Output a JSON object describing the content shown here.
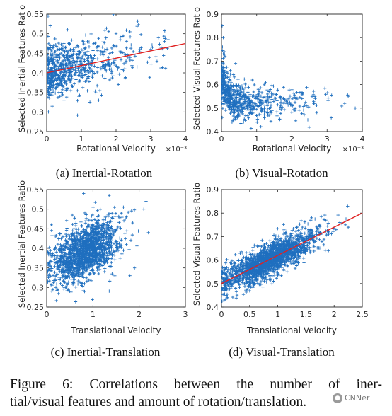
{
  "caption": {
    "line1": "Figure 6:    Correlations between the number of iner-",
    "line2": "tial/visual features and amount of rotation/translation."
  },
  "watermark": {
    "text": "CNNer",
    "icon": "wechat-logo-icon"
  },
  "colors": {
    "points": "#1f6fbf",
    "fit_line": "#e02020",
    "axes": "#262626"
  },
  "chart_data": [
    {
      "type": "scatter",
      "caption": "(a)  Inertial-Rotation",
      "xlabel": "Rotational Velocity",
      "ylabel": "Selected Inertial Features Ratio",
      "xlim": [
        0,
        4
      ],
      "ylim": [
        0.25,
        0.55
      ],
      "xticks": [
        "0",
        "1",
        "2",
        "3",
        "4"
      ],
      "yticks": [
        "0.25",
        "0.3",
        "0.35",
        "0.4",
        "0.45",
        "0.5",
        "0.55"
      ],
      "x_exponent": "×10⁻³",
      "marker": "+",
      "fit_line": {
        "x": [
          0,
          4
        ],
        "y": [
          0.4,
          0.475
        ]
      },
      "scatter_model": {
        "n": 700,
        "x_dist": "exp",
        "x_mean": 0.9,
        "x_max": 3.5,
        "intercept": 0.4,
        "slope": 0.0185,
        "noise": 0.033,
        "seed": 11
      },
      "points": [
        [
          0.04,
          0.545
        ],
        [
          0.1,
          0.52
        ],
        [
          0.2,
          0.47
        ],
        [
          2.4,
          0.505
        ],
        [
          3.4,
          0.48
        ],
        [
          3.5,
          0.485
        ],
        [
          3.3,
          0.465
        ],
        [
          3.0,
          0.46
        ],
        [
          1.5,
          0.33
        ],
        [
          0.5,
          0.33
        ],
        [
          0.05,
          0.3
        ],
        [
          0.6,
          0.51
        ],
        [
          2.0,
          0.5
        ]
      ]
    },
    {
      "type": "scatter",
      "caption": "(b)  Visual-Rotation",
      "xlabel": "Rotational Velocity",
      "ylabel": "Selected Visual Features Ratio",
      "xlim": [
        0,
        4
      ],
      "ylim": [
        0.4,
        0.9
      ],
      "xticks": [
        "0",
        "1",
        "2",
        "3",
        "4"
      ],
      "yticks": [
        "0.4",
        "0.5",
        "0.6",
        "0.7",
        "0.8",
        "0.9"
      ],
      "x_exponent": "×10⁻³",
      "marker": "+",
      "scatter_model": {
        "n": 650,
        "x_dist": "exp",
        "x_mean": 0.75,
        "x_max": 3.6,
        "intercept": 0.52,
        "slope": 0.0,
        "noise": 0.035,
        "decay_amp": 0.16,
        "decay_rate": 6.0,
        "seed": 23
      },
      "points": [
        [
          0.02,
          0.85
        ],
        [
          0.05,
          0.8
        ],
        [
          0.03,
          0.76
        ],
        [
          0.08,
          0.74
        ],
        [
          0.1,
          0.72
        ],
        [
          0.25,
          0.66
        ],
        [
          0.4,
          0.69
        ],
        [
          3.6,
          0.55
        ],
        [
          3.5,
          0.52
        ],
        [
          3.8,
          0.5
        ],
        [
          0.02,
          0.46
        ],
        [
          0.3,
          0.44
        ]
      ]
    },
    {
      "type": "scatter",
      "caption": "(c)  Inertial-Translation",
      "xlabel": "Translational Velocity",
      "ylabel": "Selected Inertial Features Ratio",
      "xlim": [
        0,
        3
      ],
      "ylim": [
        0.25,
        0.55
      ],
      "xticks": [
        "0",
        "1",
        "2",
        "3"
      ],
      "yticks": [
        "0.25",
        "0.3",
        "0.35",
        "0.4",
        "0.45",
        "0.5",
        "0.55"
      ],
      "marker": "+",
      "scatter_model": {
        "n": 1500,
        "x_dist": "normal",
        "x_mean": 0.85,
        "x_sd": 0.38,
        "x_min": 0.02,
        "x_max": 2.2,
        "intercept": 0.35,
        "slope": 0.05,
        "noise": 0.035,
        "seed": 37
      },
      "points": [
        [
          2.15,
          0.52
        ],
        [
          2.2,
          0.44
        ],
        [
          2.1,
          0.5
        ],
        [
          1.9,
          0.35
        ],
        [
          1.8,
          0.33
        ],
        [
          0.2,
          0.3
        ],
        [
          0.3,
          0.31
        ],
        [
          0.8,
          0.54
        ],
        [
          1.35,
          0.535
        ],
        [
          0.1,
          0.46
        ]
      ]
    },
    {
      "type": "scatter",
      "caption": "(d)  Visual-Translation",
      "xlabel": "Translational Velocity",
      "ylabel": "Selected Visual Features Ratio",
      "xlim": [
        0,
        2.5
      ],
      "ylim": [
        0.4,
        0.9
      ],
      "xticks": [
        "0",
        "0.5",
        "1",
        "1.5",
        "2",
        "2.5"
      ],
      "yticks": [
        "0.4",
        "0.5",
        "0.6",
        "0.7",
        "0.8",
        "0.9"
      ],
      "marker": "+",
      "fit_line": {
        "x": [
          0,
          2.5
        ],
        "y": [
          0.5,
          0.8
        ]
      },
      "scatter_model": {
        "n": 1800,
        "x_dist": "normal",
        "x_mean": 0.85,
        "x_sd": 0.42,
        "x_min": 0.0,
        "x_max": 2.25,
        "intercept": 0.5,
        "slope": 0.12,
        "noise": 0.035,
        "seed": 53
      },
      "points": [
        [
          2.2,
          0.75
        ],
        [
          2.25,
          0.74
        ],
        [
          2.1,
          0.76
        ],
        [
          0.05,
          0.43
        ],
        [
          0.1,
          0.44
        ],
        [
          1.9,
          0.64
        ],
        [
          1.6,
          0.78
        ]
      ]
    }
  ]
}
